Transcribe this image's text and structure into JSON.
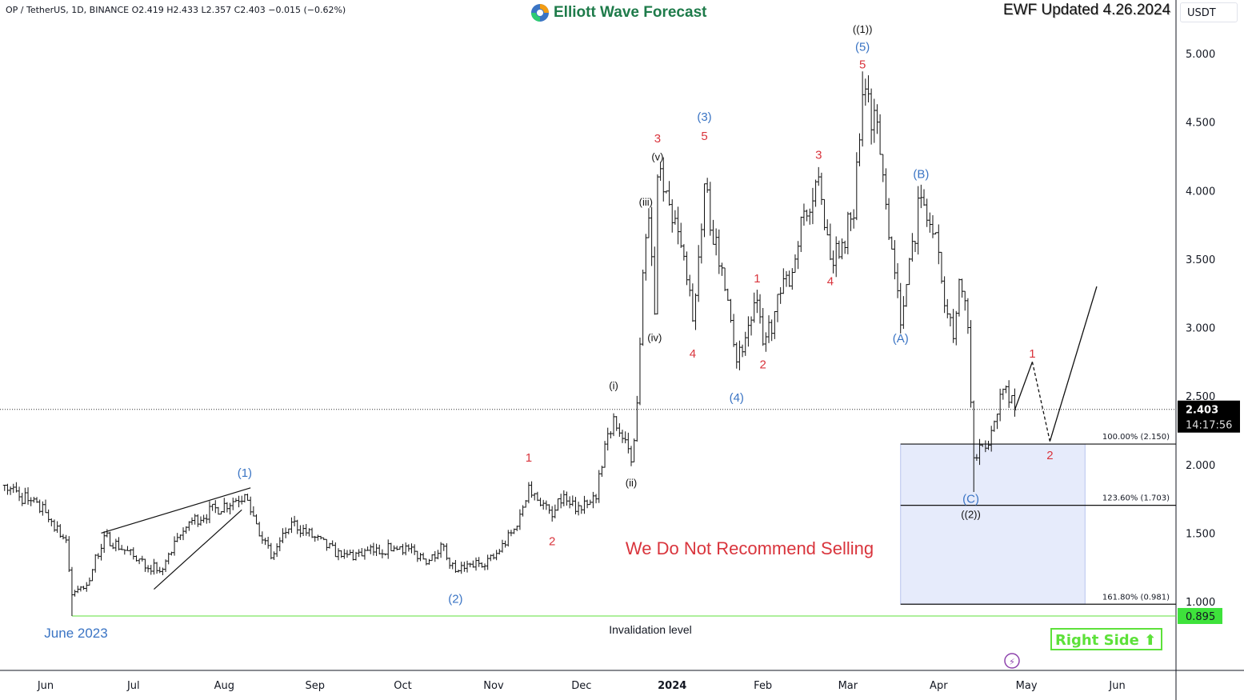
{
  "header": {
    "symbol_line": "OP / TetherUS, 1D, BINANCE  O2.419  H2.433  L2.357  C2.403  −0.015 (−0.62%)",
    "logo_text": "Elliott Wave Forecast",
    "updated": "EWF Updated 4.26.2024",
    "currency": "USDT"
  },
  "colors": {
    "blue": "#3a74c4",
    "red": "#d9343c",
    "black": "#111111",
    "green": "#5de13a",
    "fib_fill": "#e6ebfb",
    "accent_purple": "#8e44ad"
  },
  "annotations": {
    "june": "June 2023",
    "invalidation": "Invalidation level",
    "warning": "We Do Not Recommend Selling",
    "right_side": "Right Side",
    "right_side_icon": "arrow-up-icon"
  },
  "chart_data": {
    "type": "ohlc",
    "title": "",
    "y_axis": {
      "range": [
        0.6,
        5.2
      ],
      "ticks": [
        "5.000",
        "4.500",
        "4.000",
        "3.500",
        "3.000",
        "2.500",
        "2.000",
        "1.500",
        "1.000"
      ],
      "scale": "linear"
    },
    "x_axis": {
      "ticks": [
        {
          "label": "Jun",
          "date": "2023-06-01"
        },
        {
          "label": "Jul",
          "date": "2023-07-01"
        },
        {
          "label": "Aug",
          "date": "2023-08-01"
        },
        {
          "label": "Sep",
          "date": "2023-09-01"
        },
        {
          "label": "Oct",
          "date": "2023-10-01"
        },
        {
          "label": "Nov",
          "date": "2023-11-01"
        },
        {
          "label": "Dec",
          "date": "2023-12-01"
        },
        {
          "label": "2024",
          "date": "2024-01-01",
          "bold": true
        },
        {
          "label": "Feb",
          "date": "2024-02-01"
        },
        {
          "label": "Mar",
          "date": "2024-03-01"
        },
        {
          "label": "Apr",
          "date": "2024-04-01"
        },
        {
          "label": "May",
          "date": "2024-05-01"
        },
        {
          "label": "Jun",
          "date": "2024-06-01"
        }
      ]
    },
    "last_price": {
      "value": "2.403",
      "countdown": "14:17:56"
    },
    "price_pivots": [
      [
        "2023-05-18",
        1.85
      ],
      [
        "2023-06-01",
        1.65
      ],
      [
        "2023-06-08",
        1.45
      ],
      [
        "2023-06-10",
        1.05
      ],
      [
        "2023-06-15",
        1.12
      ],
      [
        "2023-06-21",
        1.48
      ],
      [
        "2023-07-01",
        1.33
      ],
      [
        "2023-07-10",
        1.22
      ],
      [
        "2023-07-20",
        1.58
      ],
      [
        "2023-08-08",
        1.78
      ],
      [
        "2023-08-17",
        1.32
      ],
      [
        "2023-08-24",
        1.58
      ],
      [
        "2023-09-10",
        1.33
      ],
      [
        "2023-09-30",
        1.4
      ],
      [
        "2023-10-10",
        1.3
      ],
      [
        "2023-10-14",
        1.42
      ],
      [
        "2023-10-19",
        1.22
      ],
      [
        "2023-11-01",
        1.32
      ],
      [
        "2023-11-09",
        1.55
      ],
      [
        "2023-11-13",
        1.85
      ],
      [
        "2023-11-21",
        1.62
      ],
      [
        "2023-11-25",
        1.78
      ],
      [
        "2023-12-01",
        1.67
      ],
      [
        "2023-12-06",
        1.75
      ],
      [
        "2023-12-09",
        2.15
      ],
      [
        "2023-12-12",
        2.35
      ],
      [
        "2023-12-18",
        2.02
      ],
      [
        "2023-12-20",
        2.45
      ],
      [
        "2023-12-22",
        3.4
      ],
      [
        "2023-12-24",
        3.8
      ],
      [
        "2023-12-26",
        3.1
      ],
      [
        "2023-12-27",
        4.1
      ],
      [
        "2024-01-03",
        3.7
      ],
      [
        "2024-01-08",
        3.05
      ],
      [
        "2024-01-12",
        4.05
      ],
      [
        "2024-01-17",
        3.45
      ],
      [
        "2024-01-20",
        3.2
      ],
      [
        "2024-01-23",
        2.75
      ],
      [
        "2024-01-30",
        3.2
      ],
      [
        "2024-02-01",
        2.88
      ],
      [
        "2024-02-12",
        3.5
      ],
      [
        "2024-02-15",
        3.85
      ],
      [
        "2024-02-20",
        4.1
      ],
      [
        "2024-02-24",
        3.5
      ],
      [
        "2024-03-03",
        3.8
      ],
      [
        "2024-03-06",
        4.7
      ],
      [
        "2024-03-11",
        4.5
      ],
      [
        "2024-03-14",
        3.9
      ],
      [
        "2024-03-17",
        3.4
      ],
      [
        "2024-03-19",
        3.02
      ],
      [
        "2024-03-22",
        3.5
      ],
      [
        "2024-03-26",
        3.95
      ],
      [
        "2024-04-01",
        3.55
      ],
      [
        "2024-04-04",
        3.1
      ],
      [
        "2024-04-06",
        2.92
      ],
      [
        "2024-04-08",
        3.35
      ],
      [
        "2024-04-11",
        3.0
      ],
      [
        "2024-04-13",
        2.05
      ],
      [
        "2024-04-17",
        2.12
      ],
      [
        "2024-04-23",
        2.55
      ],
      [
        "2024-04-27",
        2.4
      ]
    ],
    "wave_labels": [
      {
        "text": "(1)",
        "date": "2023-08-08",
        "price": 1.94,
        "color": "blue"
      },
      {
        "text": "(2)",
        "date": "2023-10-19",
        "price": 1.02,
        "color": "blue"
      },
      {
        "text": "1",
        "date": "2023-11-13",
        "price": 2.05,
        "color": "red"
      },
      {
        "text": "2",
        "date": "2023-11-21",
        "price": 1.44,
        "color": "red"
      },
      {
        "text": "(i)",
        "date": "2023-12-12",
        "price": 2.58,
        "color": "black"
      },
      {
        "text": "(ii)",
        "date": "2023-12-18",
        "price": 1.87,
        "color": "black"
      },
      {
        "text": "(iii)",
        "date": "2023-12-23",
        "price": 3.92,
        "color": "black"
      },
      {
        "text": "(iv)",
        "date": "2023-12-26",
        "price": 2.93,
        "color": "black"
      },
      {
        "text": "(v)",
        "date": "2023-12-27",
        "price": 4.25,
        "color": "black"
      },
      {
        "text": "3",
        "date": "2023-12-27",
        "price": 4.38,
        "color": "red"
      },
      {
        "text": "(3)",
        "date": "2024-01-12",
        "price": 4.54,
        "color": "blue"
      },
      {
        "text": "5",
        "date": "2024-01-12",
        "price": 4.4,
        "color": "red"
      },
      {
        "text": "4",
        "date": "2024-01-08",
        "price": 2.81,
        "color": "red"
      },
      {
        "text": "(4)",
        "date": "2024-01-23",
        "price": 2.49,
        "color": "blue"
      },
      {
        "text": "1",
        "date": "2024-01-30",
        "price": 3.36,
        "color": "red"
      },
      {
        "text": "2",
        "date": "2024-02-01",
        "price": 2.73,
        "color": "red"
      },
      {
        "text": "3",
        "date": "2024-02-20",
        "price": 4.26,
        "color": "red"
      },
      {
        "text": "4",
        "date": "2024-02-24",
        "price": 3.34,
        "color": "red"
      },
      {
        "text": "((1))",
        "date": "2024-03-06",
        "price": 5.18,
        "color": "black"
      },
      {
        "text": "(5)",
        "date": "2024-03-06",
        "price": 5.05,
        "color": "blue"
      },
      {
        "text": "5",
        "date": "2024-03-06",
        "price": 4.92,
        "color": "red"
      },
      {
        "text": "(A)",
        "date": "2024-03-19",
        "price": 2.92,
        "color": "blue"
      },
      {
        "text": "(B)",
        "date": "2024-03-26",
        "price": 4.12,
        "color": "blue"
      },
      {
        "text": "(C)",
        "date": "2024-04-12",
        "price": 1.75,
        "color": "blue"
      },
      {
        "text": "((2))",
        "date": "2024-04-12",
        "price": 1.64,
        "color": "black"
      },
      {
        "text": "1",
        "date": "2024-05-03",
        "price": 2.81,
        "color": "red"
      },
      {
        "text": "2",
        "date": "2024-05-09",
        "price": 2.07,
        "color": "red"
      }
    ],
    "wedge_lines": [
      [
        [
          "2023-06-20",
          1.5
        ],
        [
          "2023-08-10",
          1.83
        ]
      ],
      [
        [
          "2023-07-08",
          1.09
        ],
        [
          "2023-08-07",
          1.67
        ]
      ]
    ],
    "projection": [
      {
        "from": [
          "2024-04-27",
          2.4
        ],
        "to": [
          "2024-05-03",
          2.75
        ],
        "style": "solid"
      },
      {
        "from": [
          "2024-05-03",
          2.75
        ],
        "to": [
          "2024-05-09",
          2.17
        ],
        "style": "dashed"
      },
      {
        "from": [
          "2024-05-09",
          2.17
        ],
        "to": [
          "2024-05-25",
          3.3
        ],
        "style": "solid"
      }
    ],
    "fib_zone": {
      "start": "2024-03-19",
      "end": "2024-05-21",
      "levels": [
        {
          "label": "100.00% (2.150)",
          "price": 2.15
        },
        {
          "label": "123.60% (1.703)",
          "price": 1.703
        },
        {
          "label": "161.80% (0.981)",
          "price": 0.981
        }
      ]
    },
    "invalidation_level": {
      "start": "2023-06-10",
      "price": 0.895,
      "label": "0.895"
    }
  }
}
